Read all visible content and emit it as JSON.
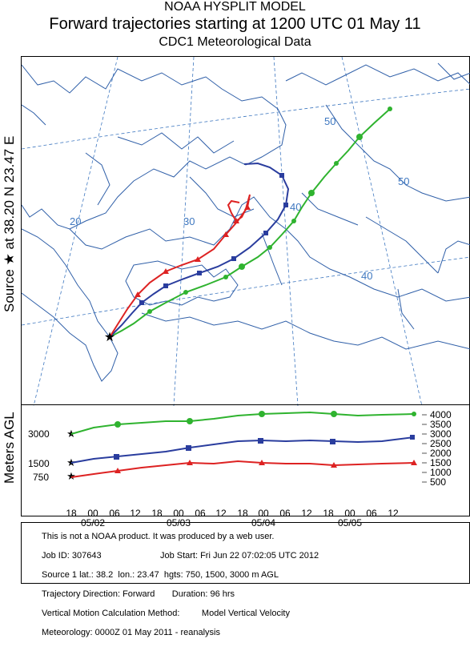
{
  "header": {
    "line1": "NOAA HYSPLIT MODEL",
    "line2": "Forward trajectories starting at 1200 UTC 01 May 11",
    "line3": "CDC1 Meteorological Data"
  },
  "source_label": "Source ★ at   38.20 N   23.47 E",
  "vertical_axis_label": "Meters AGL",
  "map": {
    "lat_labels": [
      "50",
      "50",
      "40",
      "40",
      "30",
      "20"
    ],
    "colors": {
      "red": "#dd2222",
      "blue": "#2a3d9e",
      "green": "#2fb32f",
      "grid": "#3f78c0",
      "border": "#2f5fa8"
    }
  },
  "vertical_panel": {
    "right_ticks": [
      "4000",
      "3500",
      "3000",
      "2500",
      "2000",
      "1500",
      "1000",
      "500"
    ],
    "left_labels": [
      "3000",
      "1500",
      "750"
    ],
    "time_ticks": [
      "18",
      "00",
      "06",
      "12",
      "18",
      "00",
      "06",
      "12",
      "18",
      "00",
      "06",
      "12",
      "18",
      "00",
      "06",
      "12"
    ],
    "date_labels": [
      "05/02",
      "05/03",
      "05/04",
      "05/05"
    ]
  },
  "trajectories": [
    {
      "name": "750",
      "color": "red",
      "marker": "triangle"
    },
    {
      "name": "1500",
      "color": "blue",
      "marker": "square"
    },
    {
      "name": "3000",
      "color": "green",
      "marker": "circle"
    }
  ],
  "info": {
    "line1": "This is not a NOAA product. It was produced by a web user.",
    "line2": "Job ID: 307643                        Job Start: Fri Jun 22 07:02:05 UTC 2012",
    "line3": "Source 1 lat.: 38.2  lon.: 23.47  hgts: 750, 1500, 3000 m AGL",
    "line4": "Trajectory Direction: Forward       Duration: 96 hrs",
    "line5": "Vertical Motion Calculation Method:         Model Vertical Velocity",
    "line6": "Meteorology: 0000Z 01 May 2011 - reanalysis"
  }
}
